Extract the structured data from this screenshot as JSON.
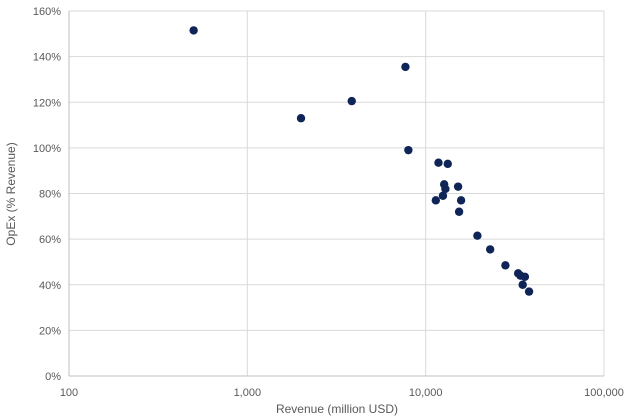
{
  "chart_data": {
    "type": "scatter",
    "title": "",
    "xlabel": "Revenue (million USD)",
    "ylabel": "OpEx (% Revenue)",
    "x_scale": "log",
    "xlim": [
      100,
      100000
    ],
    "ylim": [
      0,
      160
    ],
    "x_ticks": [
      100,
      1000,
      10000,
      100000
    ],
    "x_tick_labels": [
      "100",
      "1,000",
      "10,000",
      "100,000"
    ],
    "y_ticks": [
      0,
      20,
      40,
      60,
      80,
      100,
      120,
      140,
      160
    ],
    "y_tick_labels": [
      "0%",
      "20%",
      "40%",
      "60%",
      "80%",
      "100%",
      "120%",
      "140%",
      "160%"
    ],
    "grid": true,
    "legend": "none",
    "marker_color": "#0f2557",
    "points": [
      {
        "x": 500,
        "y": 151.5
      },
      {
        "x": 2000,
        "y": 113
      },
      {
        "x": 3850,
        "y": 120.5
      },
      {
        "x": 7700,
        "y": 135.5
      },
      {
        "x": 8000,
        "y": 99
      },
      {
        "x": 11800,
        "y": 93.5
      },
      {
        "x": 13300,
        "y": 93
      },
      {
        "x": 12700,
        "y": 84
      },
      {
        "x": 12900,
        "y": 82
      },
      {
        "x": 12500,
        "y": 79
      },
      {
        "x": 11400,
        "y": 77
      },
      {
        "x": 15200,
        "y": 83
      },
      {
        "x": 15800,
        "y": 77
      },
      {
        "x": 15400,
        "y": 72
      },
      {
        "x": 19500,
        "y": 61.5
      },
      {
        "x": 23000,
        "y": 55.5
      },
      {
        "x": 28000,
        "y": 48.5
      },
      {
        "x": 33000,
        "y": 45
      },
      {
        "x": 34000,
        "y": 44
      },
      {
        "x": 36000,
        "y": 43.5
      },
      {
        "x": 35000,
        "y": 40
      },
      {
        "x": 38000,
        "y": 37
      }
    ]
  }
}
